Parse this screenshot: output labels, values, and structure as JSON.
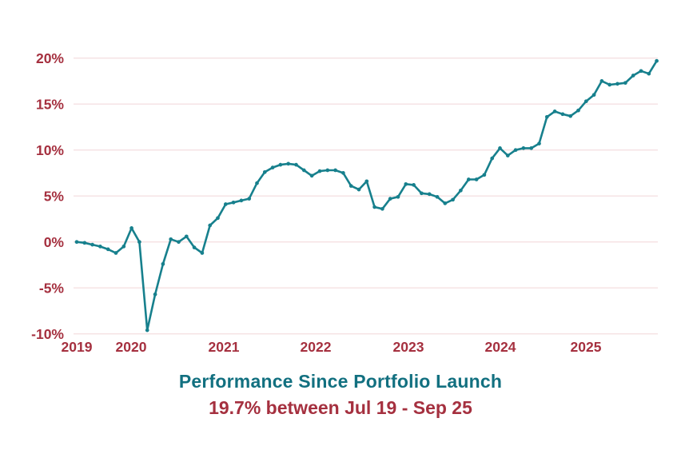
{
  "chart_data": {
    "type": "line",
    "title": "Performance Since Portfolio Launch",
    "subtitle": "19.7% between Jul 19 - Sep 25",
    "final_return_pct": 19.7,
    "period": {
      "start_label": "Jul 19",
      "end_label": "Sep 25"
    },
    "x_tick_labels": [
      "2019",
      "2020",
      "2021",
      "2022",
      "2023",
      "2024",
      "2025"
    ],
    "y_tick_labels": [
      "20%",
      "15%",
      "10%",
      "5%",
      "0%",
      "-5%",
      "-10%"
    ],
    "y_tick_values": [
      20,
      15,
      10,
      5,
      0,
      -5,
      -10
    ],
    "ylim": [
      -10,
      20
    ],
    "grid": "horizontal-only",
    "legend": "none",
    "series": [
      {
        "name": "Performance since portfolio launch",
        "frequency": "monthly",
        "start_month": "2019-07",
        "end_month": "2025-09",
        "values": [
          0.0,
          -0.1,
          -0.3,
          -0.5,
          -0.8,
          -1.2,
          -0.5,
          1.5,
          0.0,
          -9.6,
          -5.7,
          -2.4,
          0.3,
          0.0,
          0.6,
          -0.6,
          -1.2,
          1.8,
          2.6,
          4.1,
          4.3,
          4.5,
          4.7,
          6.4,
          7.6,
          8.1,
          8.4,
          8.5,
          8.4,
          7.8,
          7.2,
          7.7,
          7.8,
          7.8,
          7.5,
          6.1,
          5.7,
          6.6,
          3.8,
          3.6,
          4.7,
          4.9,
          6.3,
          6.2,
          5.3,
          5.2,
          4.9,
          4.2,
          4.6,
          5.6,
          6.8,
          6.8,
          7.3,
          9.1,
          10.2,
          9.4,
          10.0,
          10.2,
          10.2,
          10.7,
          13.6,
          14.2,
          13.9,
          13.7,
          14.3,
          15.3,
          16.0,
          17.5,
          17.1,
          17.2,
          17.3,
          18.1,
          18.6,
          18.3,
          19.7
        ]
      }
    ],
    "colors": {
      "line": "#17808D",
      "marker": "#17808D",
      "axis_labels": "#A5303F",
      "gridlines": "#F5E0E2",
      "title": "#127080",
      "subtitle": "#A5303F",
      "background": "#FFFFFF"
    }
  }
}
